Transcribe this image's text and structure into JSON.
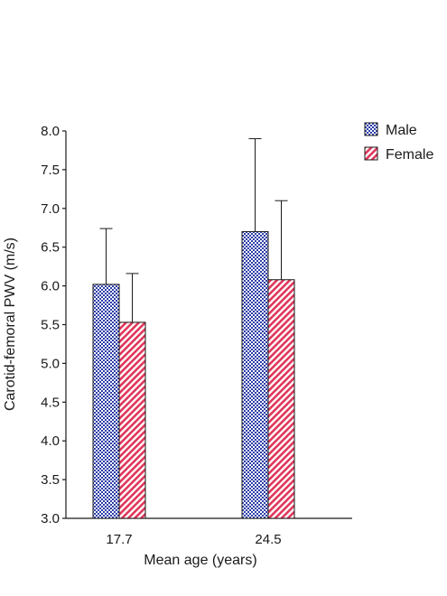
{
  "chart_data": {
    "type": "bar",
    "title": "",
    "xlabel": "Mean age (years)",
    "ylabel": "Carotid-femoral PWV (m/s)",
    "ylim": [
      3.0,
      8.0
    ],
    "y_ticks": [
      "3.0",
      "3.5",
      "4.0",
      "4.5",
      "5.0",
      "5.5",
      "6.0",
      "6.5",
      "7.0",
      "7.5",
      "8.0"
    ],
    "categories": [
      "17.7",
      "24.5"
    ],
    "series": [
      {
        "name": "Male",
        "values": [
          6.02,
          6.7
        ],
        "error_upper": [
          0.72,
          1.2
        ],
        "color": "#2c3ea8",
        "pattern": "checkered"
      },
      {
        "name": "Female",
        "values": [
          5.53,
          6.08
        ],
        "error_upper": [
          0.63,
          1.02
        ],
        "color": "#e0365a",
        "pattern": "diagonal-hatch"
      }
    ],
    "error_bars": "upper only",
    "grid": false,
    "legend_position": "top-right"
  }
}
